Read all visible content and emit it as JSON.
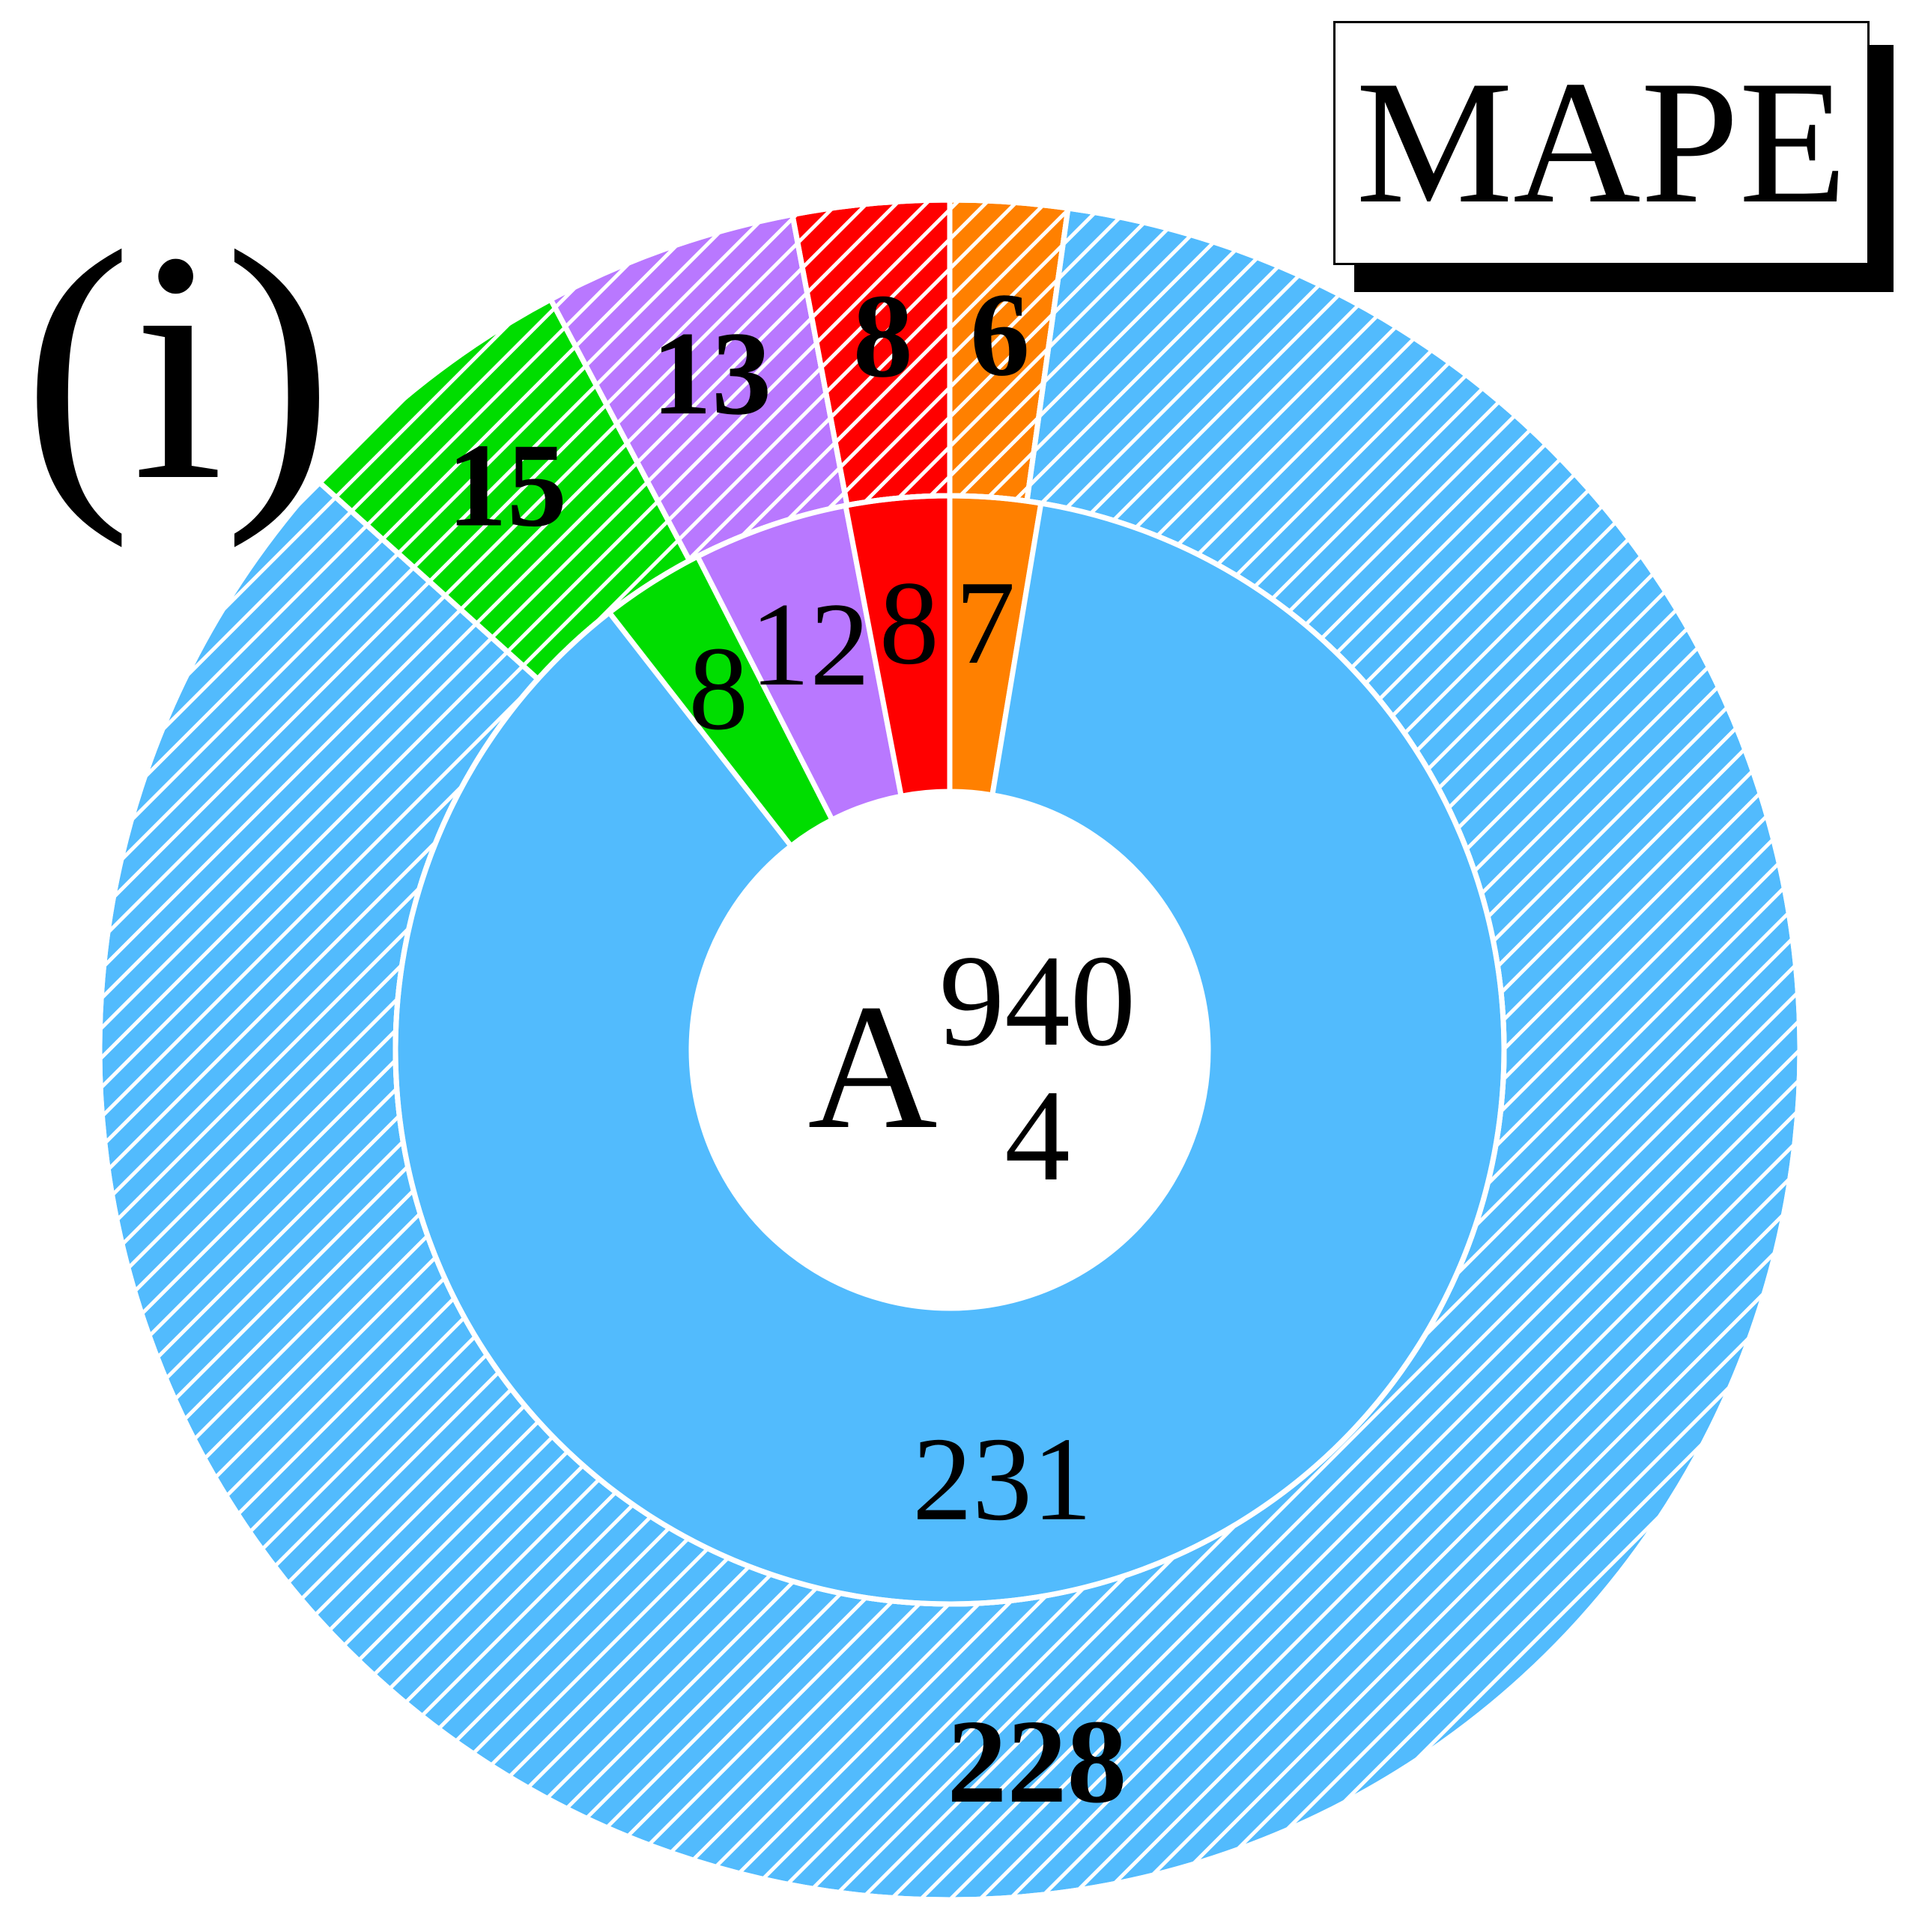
{
  "panel_label": "(i)",
  "legend": {
    "label": "MAPE"
  },
  "center": {
    "base": "A",
    "superscript": "940",
    "subscript": "4"
  },
  "colors": {
    "blue": "#52BBFD",
    "orange": "#FF8000",
    "red": "#FF0000",
    "purple": "#B978FF",
    "green": "#00DD00",
    "separator": "#FFFFFF"
  },
  "chart_data": {
    "type": "pie",
    "variant": "nested-donut",
    "title": "",
    "rings": [
      {
        "ring": "inner",
        "hatched": false,
        "bold_labels": false,
        "values": [
          7,
          231,
          8,
          12,
          8
        ],
        "colors": [
          "#FF8000",
          "#52BBFD",
          "#00DD00",
          "#B978FF",
          "#FF0000"
        ]
      },
      {
        "ring": "outer",
        "hatched": true,
        "bold_labels": true,
        "values": [
          6,
          228,
          15,
          13,
          8
        ],
        "colors": [
          "#FF8000",
          "#52BBFD",
          "#00DD00",
          "#B978FF",
          "#FF0000"
        ]
      }
    ]
  }
}
